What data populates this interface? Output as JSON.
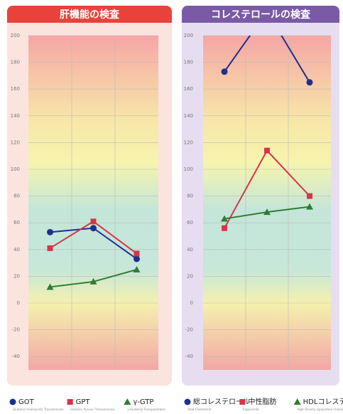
{
  "chart_data": [
    {
      "type": "line",
      "title": "肝機能の検査",
      "header_color": "#e8423a",
      "panel_color": "#fbe4de",
      "categories": [
        null,
        null,
        null
      ],
      "ylim": [
        -50,
        200
      ],
      "yticks": [
        -40,
        -20,
        0,
        20,
        40,
        60,
        80,
        100,
        120,
        140,
        160,
        180,
        200
      ],
      "grid": true,
      "series": [
        {
          "name": "GOT",
          "description": "Glutamic Oxaloacetic Transaminase",
          "color": "#1f2f8f",
          "marker": "circle",
          "values": [
            53,
            56,
            33
          ]
        },
        {
          "name": "GPT",
          "description": "Glutamic Pyruvic Transaminase",
          "color": "#d8344a",
          "marker": "square",
          "values": [
            41,
            61,
            37
          ]
        },
        {
          "name": "γ-GTP",
          "description": "γ-Glutamyl Transpeptidase",
          "color": "#2e7d32",
          "marker": "triangle",
          "values": [
            12,
            16,
            25
          ]
        }
      ]
    },
    {
      "type": "line",
      "title": "コレステロールの検査",
      "header_color": "#7a5aa6",
      "panel_color": "#e6def0",
      "categories": [
        null,
        null,
        null
      ],
      "ylim": [
        -50,
        200
      ],
      "yticks": [
        -40,
        -20,
        0,
        20,
        40,
        60,
        80,
        100,
        120,
        140,
        160,
        180,
        200
      ],
      "grid": true,
      "series": [
        {
          "name": "総コレステロール",
          "description": "Total Cholesterol",
          "color": "#1f2f8f",
          "marker": "circle",
          "values": [
            173,
            218,
            165
          ]
        },
        {
          "name": "中性脂肪",
          "description": "Triglyceride",
          "color": "#d8344a",
          "marker": "square",
          "values": [
            56,
            114,
            80
          ]
        },
        {
          "name": "HDLコレステロール",
          "description": "High Density Lipoprotein Cholesterol",
          "color": "#2e7d32",
          "marker": "triangle",
          "values": [
            63,
            68,
            72
          ]
        }
      ]
    }
  ]
}
